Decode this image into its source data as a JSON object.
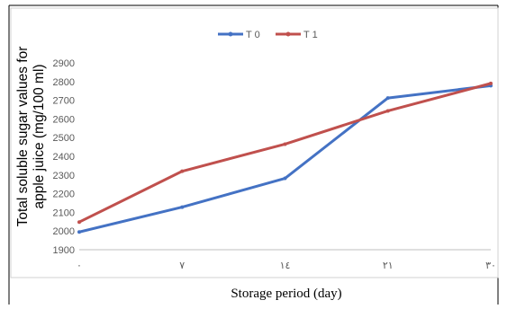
{
  "chart_data": {
    "type": "line",
    "title": "",
    "xlabel": "Storage period (day)",
    "ylabel_line1": "Total soluble sugar values for",
    "ylabel_line2": "apple juice (mg/100 ml)",
    "categories": [
      "٠",
      "٧",
      "١٤",
      "٢١",
      "٣٠"
    ],
    "ylim": [
      1900,
      2900
    ],
    "yticks": [
      1900,
      2000,
      2100,
      2200,
      2300,
      2400,
      2500,
      2600,
      2700,
      2800,
      2900
    ],
    "grid": false,
    "legend_position": "top-center",
    "series": [
      {
        "name": "T 0",
        "color": "#4472c4",
        "values": [
          1995,
          2128,
          2282,
          2712,
          2778
        ]
      },
      {
        "name": "T 1",
        "color": "#c0504d",
        "values": [
          2048,
          2320,
          2465,
          2643,
          2790
        ]
      }
    ]
  }
}
